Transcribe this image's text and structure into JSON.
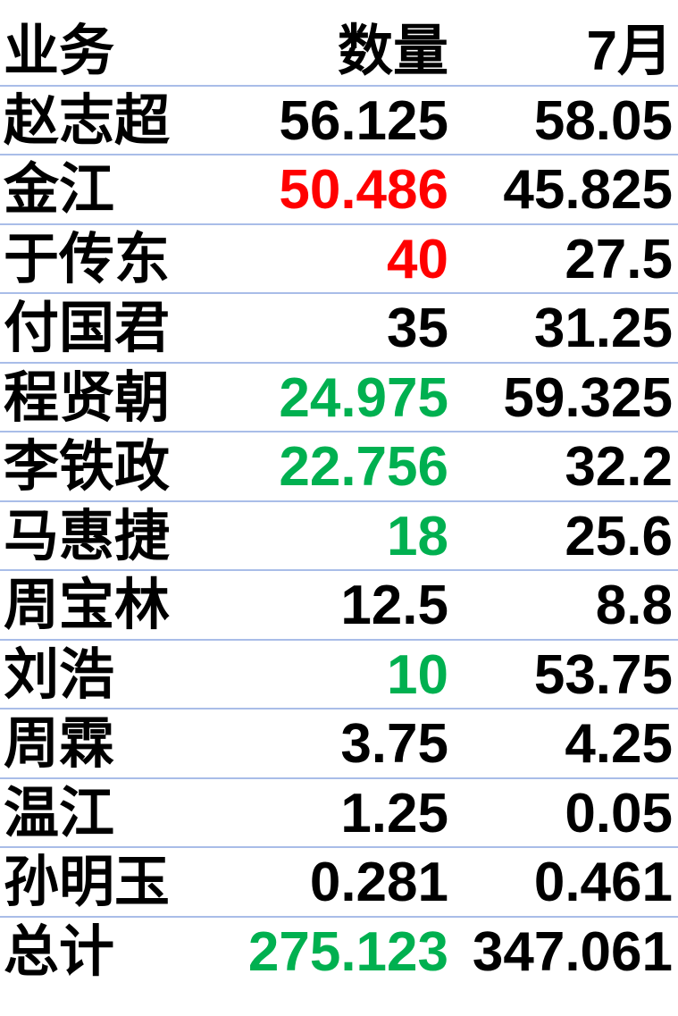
{
  "header": {
    "name": "业务",
    "qty": "数量",
    "month": "7月"
  },
  "rows": [
    {
      "name": "赵志超",
      "qty": "56.125",
      "month": "58.05",
      "qty_color": "black"
    },
    {
      "name": "金江",
      "qty": "50.486",
      "month": "45.825",
      "qty_color": "red"
    },
    {
      "name": "于传东",
      "qty": "40",
      "month": "27.5",
      "qty_color": "red"
    },
    {
      "name": "付国君",
      "qty": "35",
      "month": "31.25",
      "qty_color": "black"
    },
    {
      "name": "程贤朝",
      "qty": "24.975",
      "month": "59.325",
      "qty_color": "green"
    },
    {
      "name": "李铁政",
      "qty": "22.756",
      "month": "32.2",
      "qty_color": "green"
    },
    {
      "name": "马惠捷",
      "qty": "18",
      "month": "25.6",
      "qty_color": "green"
    },
    {
      "name": "周宝林",
      "qty": "12.5",
      "month": "8.8",
      "qty_color": "black"
    },
    {
      "name": "刘浩",
      "qty": "10",
      "month": "53.75",
      "qty_color": "green"
    },
    {
      "name": "周霖",
      "qty": "3.75",
      "month": "4.25",
      "qty_color": "black"
    },
    {
      "name": "温江",
      "qty": "1.25",
      "month": "0.05",
      "qty_color": "black"
    },
    {
      "name": "孙明玉",
      "qty": "0.281",
      "month": "0.461",
      "qty_color": "black"
    }
  ],
  "total": {
    "name": "总计",
    "qty": "275.123",
    "month": "347.061",
    "qty_color": "green"
  }
}
